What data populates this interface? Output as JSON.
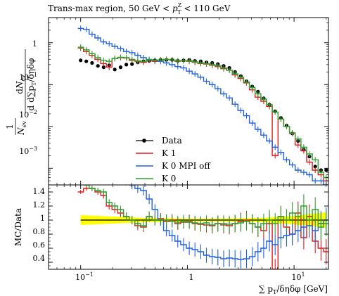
{
  "chart_data": [
    {
      "type": "line",
      "panel": "main",
      "title": "Trans-max region, 50 GeV < p_T^Z < 110 GeV",
      "xlabel": "∑ p_T/δηδφ [GeV]",
      "ylabel": "1/N_ev dN_ev/d∑p_T/δηδφ",
      "xscale": "log",
      "yscale": "log",
      "xlim": [
        0.05,
        21
      ],
      "ylim": [
        0.0004,
        4
      ],
      "x_ticks": [
        "10^-1",
        "1",
        "10^1"
      ],
      "y_ticks": [
        "10^-3",
        "10^-2",
        "10^-1",
        "1"
      ],
      "legend_position": "bottom-left",
      "series": [
        {
          "name": "Data",
          "style": "markers",
          "color": "#000000",
          "x": [
            0.1,
            0.113,
            0.128,
            0.145,
            0.164,
            0.185,
            0.209,
            0.237,
            0.268,
            0.303,
            0.343,
            0.388,
            0.439,
            0.497,
            0.562,
            0.636,
            0.719,
            0.814,
            0.921,
            1.042,
            1.179,
            1.334,
            1.51,
            1.708,
            1.933,
            2.187,
            2.474,
            2.8,
            3.168,
            3.584,
            4.056,
            4.589,
            5.193,
            5.876,
            6.648,
            7.523,
            8.512,
            9.631,
            10.9,
            12.33,
            13.95,
            15.79,
            17.87,
            20.0
          ],
          "values": [
            0.38,
            0.36,
            0.33,
            0.28,
            0.26,
            0.29,
            0.23,
            0.26,
            0.3,
            0.31,
            0.34,
            0.36,
            0.37,
            0.38,
            0.39,
            0.39,
            0.39,
            0.37,
            0.38,
            0.39,
            0.37,
            0.36,
            0.34,
            0.33,
            0.31,
            0.28,
            0.25,
            0.2,
            0.16,
            0.12,
            0.09,
            0.068,
            0.047,
            0.033,
            0.023,
            0.016,
            0.0105,
            0.0068,
            0.0045,
            0.0028,
            0.0019,
            0.0011,
            0.0009,
            0.0009
          ]
        },
        {
          "name": "K 1",
          "style": "step",
          "color": "#e41a1c",
          "x": [
            0.1,
            0.113,
            0.128,
            0.145,
            0.164,
            0.185,
            0.209,
            0.237,
            0.268,
            0.303,
            0.343,
            0.388,
            0.439,
            0.497,
            0.562,
            0.636,
            0.719,
            0.814,
            0.921,
            1.042,
            1.179,
            1.334,
            1.51,
            1.708,
            1.933,
            2.187,
            2.474,
            2.8,
            3.168,
            3.584,
            4.056,
            4.589,
            5.193,
            5.876,
            6.648,
            7.523,
            8.512,
            9.631,
            10.9,
            12.33,
            13.95,
            15.79,
            17.87,
            20.0
          ],
          "values": [
            0.75,
            0.62,
            0.5,
            0.4,
            0.32,
            0.26,
            0.42,
            0.44,
            0.43,
            0.38,
            0.36,
            0.34,
            0.38,
            0.36,
            0.39,
            0.4,
            0.39,
            0.36,
            0.37,
            0.36,
            0.34,
            0.32,
            0.31,
            0.29,
            0.27,
            0.24,
            0.22,
            0.17,
            0.14,
            0.11,
            0.075,
            0.05,
            0.04,
            0.03,
            0.002,
            0.015,
            0.01,
            0.0068,
            0.0036,
            0.0026,
            0.0014,
            0.0009,
            0.0007,
            0.0005
          ]
        },
        {
          "name": "K 0 MPI off",
          "style": "step",
          "color": "#1f5fe0",
          "x": [
            0.1,
            0.113,
            0.128,
            0.145,
            0.164,
            0.185,
            0.209,
            0.237,
            0.268,
            0.303,
            0.343,
            0.388,
            0.439,
            0.497,
            0.562,
            0.636,
            0.719,
            0.814,
            0.921,
            1.042,
            1.179,
            1.334,
            1.51,
            1.708,
            1.933,
            2.187,
            2.474,
            2.8,
            3.168,
            3.584,
            4.056,
            4.589,
            5.193,
            5.876,
            6.648,
            7.523,
            8.512,
            9.631,
            10.9,
            12.33,
            13.95,
            15.79,
            17.87,
            20.0
          ],
          "values": [
            2.2,
            2.1,
            1.6,
            1.3,
            1.05,
            0.95,
            0.82,
            0.72,
            0.62,
            0.58,
            0.5,
            0.44,
            0.39,
            0.38,
            0.36,
            0.33,
            0.3,
            0.27,
            0.25,
            0.21,
            0.18,
            0.15,
            0.12,
            0.1,
            0.08,
            0.06,
            0.048,
            0.034,
            0.024,
            0.018,
            0.012,
            0.0085,
            0.0062,
            0.0045,
            0.0032,
            0.0024,
            0.0016,
            0.0012,
            0.0009,
            0.0008,
            0.0007,
            0.0005,
            0.0005,
            0.0004
          ]
        },
        {
          "name": "K 0",
          "style": "step",
          "color": "#2ca02c",
          "x": [
            0.1,
            0.113,
            0.128,
            0.145,
            0.164,
            0.185,
            0.209,
            0.237,
            0.268,
            0.303,
            0.343,
            0.388,
            0.439,
            0.497,
            0.562,
            0.636,
            0.719,
            0.814,
            0.921,
            1.042,
            1.179,
            1.334,
            1.51,
            1.708,
            1.933,
            2.187,
            2.474,
            2.8,
            3.168,
            3.584,
            4.056,
            4.589,
            5.193,
            5.876,
            6.648,
            7.523,
            8.512,
            9.631,
            10.9,
            12.33,
            13.95,
            15.79,
            17.87,
            20.0
          ],
          "values": [
            0.78,
            0.68,
            0.55,
            0.44,
            0.38,
            0.36,
            0.42,
            0.45,
            0.44,
            0.4,
            0.37,
            0.36,
            0.4,
            0.38,
            0.39,
            0.4,
            0.39,
            0.37,
            0.37,
            0.37,
            0.35,
            0.33,
            0.32,
            0.3,
            0.28,
            0.25,
            0.22,
            0.18,
            0.15,
            0.115,
            0.085,
            0.06,
            0.045,
            0.033,
            0.022,
            0.015,
            0.01,
            0.007,
            0.005,
            0.0032,
            0.0022,
            0.0016,
            0.0008,
            0.0006
          ]
        }
      ]
    },
    {
      "type": "line",
      "panel": "ratio",
      "xlabel": "∑ p_T/δηδφ [GeV]",
      "ylabel": "MC/Data",
      "xscale": "log",
      "xlim": [
        0.05,
        21
      ],
      "ylim": [
        0.3,
        1.5
      ],
      "y_ticks": [
        "0.4",
        "0.6",
        "0.8",
        "1",
        "1.2",
        "1.4"
      ],
      "data_band": {
        "color": "#ffff00",
        "x": [
          0.1,
          0.2,
          0.4,
          1.0,
          2.0,
          5.0,
          10.0,
          20.0
        ],
        "low": [
          0.93,
          0.95,
          0.97,
          0.98,
          0.98,
          0.97,
          0.94,
          0.89
        ],
        "high": [
          1.07,
          1.05,
          1.03,
          1.02,
          1.02,
          1.03,
          1.06,
          1.11
        ]
      },
      "series": [
        {
          "name": "K 1",
          "color": "#e41a1c",
          "x": [
            0.1,
            0.113,
            0.128,
            0.145,
            0.164,
            0.185,
            0.209,
            0.237,
            0.268,
            0.303,
            0.343,
            0.388,
            0.439,
            0.497,
            0.562,
            0.636,
            0.719,
            0.814,
            0.921,
            1.042,
            1.179,
            1.334,
            1.51,
            1.708,
            1.933,
            2.187,
            2.474,
            2.8,
            3.168,
            3.584,
            4.056,
            4.589,
            5.193,
            5.876,
            6.648,
            7.523,
            8.512,
            9.631,
            10.9,
            12.33,
            13.95,
            15.79,
            17.87,
            20.0
          ],
          "values": [
            1.4,
            1.45,
            1.45,
            1.4,
            1.35,
            1.2,
            1.15,
            1.1,
            1.05,
            1.0,
            0.92,
            0.9,
            1.05,
            1.0,
            1.02,
            0.98,
            1.0,
            0.95,
            0.97,
            0.98,
            0.95,
            0.94,
            0.93,
            0.92,
            0.95,
            0.93,
            0.92,
            0.95,
            0.98,
            1.0,
            0.95,
            0.9,
            0.85,
            0.95,
            0.3,
            1.05,
            0.9,
            0.8,
            1.1,
            0.75,
            1.05,
            0.7,
            0.6,
            0.55
          ]
        },
        {
          "name": "K 0 MPI off",
          "color": "#1f5fe0",
          "x": [
            0.1,
            0.113,
            0.128,
            0.145,
            0.164,
            0.185,
            0.209,
            0.237,
            0.268,
            0.303,
            0.343,
            0.388,
            0.439,
            0.497,
            0.562,
            0.636,
            0.719,
            0.814,
            0.921,
            1.042,
            1.179,
            1.334,
            1.51,
            1.708,
            1.933,
            2.187,
            2.474,
            2.8,
            3.168,
            3.584,
            4.056,
            4.589,
            5.193,
            5.876,
            6.648,
            7.523,
            8.512,
            9.631,
            10.9,
            12.33,
            13.95,
            15.79,
            17.87,
            20.0
          ],
          "values": [
            1.55,
            1.55,
            1.55,
            1.55,
            1.55,
            1.55,
            1.55,
            1.55,
            1.55,
            1.5,
            1.45,
            1.42,
            1.3,
            1.15,
            1.0,
            0.85,
            0.78,
            0.7,
            0.65,
            0.6,
            0.58,
            0.55,
            0.5,
            0.48,
            0.47,
            0.45,
            0.46,
            0.45,
            0.44,
            0.45,
            0.48,
            0.55,
            0.6,
            0.7,
            0.65,
            0.75,
            0.78,
            0.8,
            0.85,
            0.9,
            0.92,
            0.85,
            0.95,
            1.0
          ]
        },
        {
          "name": "K 0",
          "color": "#2ca02c",
          "x": [
            0.1,
            0.113,
            0.128,
            0.145,
            0.164,
            0.185,
            0.209,
            0.237,
            0.268,
            0.303,
            0.343,
            0.388,
            0.439,
            0.497,
            0.562,
            0.636,
            0.719,
            0.814,
            0.921,
            1.042,
            1.179,
            1.334,
            1.51,
            1.708,
            1.933,
            2.187,
            2.474,
            2.8,
            3.168,
            3.584,
            4.056,
            4.589,
            5.193,
            5.876,
            6.648,
            7.523,
            8.512,
            9.631,
            10.9,
            12.33,
            13.95,
            15.79,
            17.87,
            20.0
          ],
          "values": [
            1.55,
            1.5,
            1.45,
            1.42,
            1.4,
            1.25,
            1.2,
            1.15,
            1.05,
            1.0,
            0.95,
            0.92,
            1.05,
            1.0,
            1.0,
            1.0,
            0.98,
            0.97,
            0.98,
            0.97,
            0.96,
            0.95,
            0.96,
            0.93,
            0.95,
            0.95,
            0.94,
            0.95,
            0.96,
            0.98,
            0.95,
            0.9,
            0.95,
            1.0,
            0.95,
            1.05,
            1.0,
            1.1,
            1.05,
            1.2,
            1.0,
            1.15,
            0.9,
            0.95
          ]
        }
      ]
    }
  ],
  "title": {
    "prefix": "Trans-max region, 50 GeV < ",
    "var_main": "p",
    "var_sup": "Z",
    "var_sub": "T",
    "suffix": " < 110 GeV"
  },
  "legend": {
    "data": "Data",
    "k1": "K 1",
    "k0mpioff": "K 0 MPI off",
    "k0": "K 0"
  },
  "main_axis": {
    "ylabel_num_d": "d",
    "ylabel_num_n": "N",
    "ylabel_num_sub": "ev",
    "ylabel_den_1": "1",
    "ylabel_den_n": "N",
    "ylabel_den_sub": "ev",
    "ylabel_den_rest": " d∑p",
    "ylabel_den_sub2": "T",
    "ylabel_den_tail": "/δηδφ",
    "yticks": {
      "t1": "1",
      "tm1_base": "10",
      "tm1_exp": "−1",
      "tm2_base": "10",
      "tm2_exp": "−2",
      "tm3_base": "10",
      "tm3_exp": "−3"
    }
  },
  "ratio_axis": {
    "ylabel": "MC/Data",
    "yticks": [
      "1.4",
      "1.2",
      "1",
      "0.8",
      "0.6",
      "0.4"
    ],
    "xticks": {
      "t_m1_base": "10",
      "t_m1_exp": "−1",
      "t_0": "1",
      "t_1_base": "10",
      "t_1_exp": "1"
    },
    "xlabel_prefix": "∑ p",
    "xlabel_sub": "T",
    "xlabel_suffix": "/δηδφ [GeV]"
  }
}
